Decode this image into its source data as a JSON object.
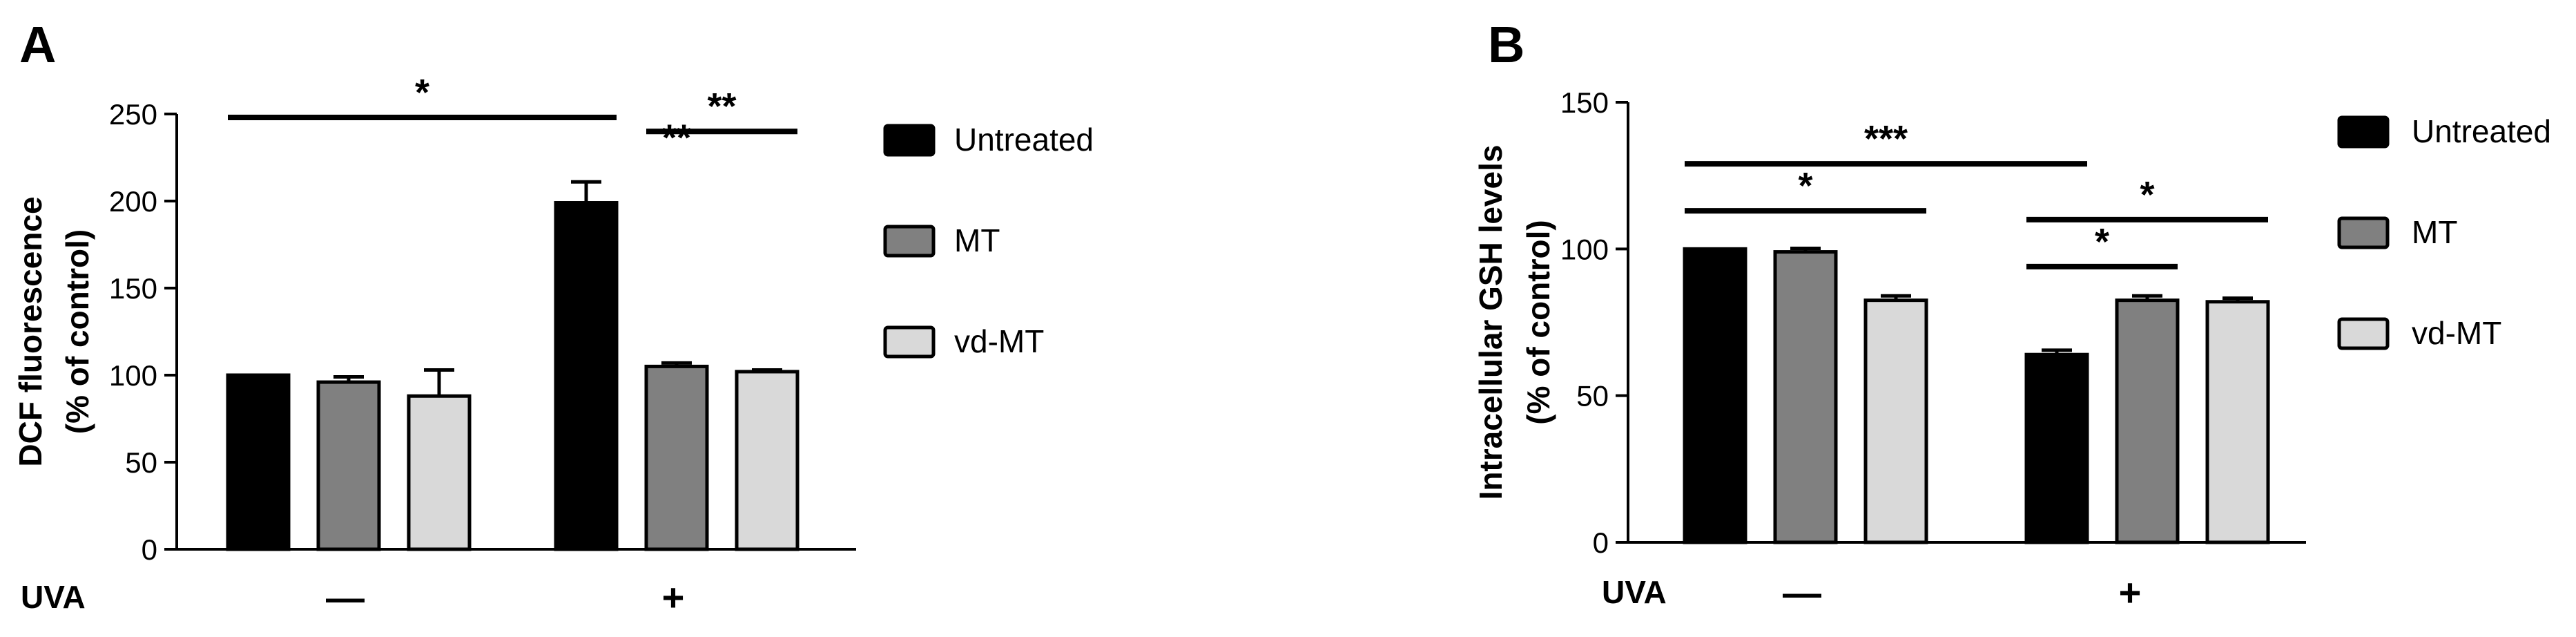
{
  "chart_data": [
    {
      "panel": "A",
      "type": "bar",
      "ylabel": "DCF fluorescence",
      "ylabel2": "(% of control)",
      "ylim": [
        0,
        250
      ],
      "yticks": [
        "0",
        "50",
        "100",
        "150",
        "200",
        "250"
      ],
      "xlabel": "UVA",
      "x_groups": [
        "—",
        "+"
      ],
      "series": [
        {
          "name": "Untreated",
          "values": [
            100,
            199
          ],
          "errors": [
            0,
            12
          ]
        },
        {
          "name": "MT",
          "values": [
            96,
            105
          ],
          "errors": [
            3,
            2
          ]
        },
        {
          "name": "vd-MT",
          "values": [
            88,
            102
          ],
          "errors": [
            15,
            1
          ]
        }
      ],
      "significance": [
        {
          "label": "*",
          "from": [
            0,
            0
          ],
          "to": [
            1,
            0
          ],
          "y": 248
        },
        {
          "label": "**",
          "from": [
            1,
            1
          ],
          "to": [
            1,
            2
          ],
          "y": 240
        },
        {
          "label": "**",
          "from": [
            1,
            1
          ],
          "to": [
            1,
            1
          ],
          "y": 222
        }
      ],
      "grid": false,
      "legend_position": "right"
    },
    {
      "panel": "B",
      "type": "bar",
      "ylabel": "Intracellular GSH levels",
      "ylabel2": "(% of control)",
      "ylim": [
        0,
        150
      ],
      "yticks": [
        "0",
        "50",
        "100",
        "150"
      ],
      "xlabel": "UVA",
      "x_groups": [
        "—",
        "+"
      ],
      "series": [
        {
          "name": "Untreated",
          "values": [
            100,
            64
          ],
          "errors": [
            0,
            1.5
          ]
        },
        {
          "name": "MT",
          "values": [
            99,
            82.5
          ],
          "errors": [
            1.2,
            1.5
          ]
        },
        {
          "name": "vd-MT",
          "values": [
            82.5,
            82
          ],
          "errors": [
            1.5,
            1.2
          ]
        }
      ],
      "significance": [
        {
          "label": "***",
          "from": [
            0,
            0
          ],
          "to": [
            1,
            0
          ],
          "y": 129
        },
        {
          "label": "*",
          "from": [
            0,
            0
          ],
          "to": [
            0,
            2
          ],
          "y": 113
        },
        {
          "label": "*",
          "from": [
            1,
            0
          ],
          "to": [
            1,
            2
          ],
          "y": 110
        },
        {
          "label": "*",
          "from": [
            1,
            0
          ],
          "to": [
            1,
            1
          ],
          "y": 94
        }
      ],
      "grid": false,
      "legend_position": "right"
    }
  ],
  "colors": {
    "Untreated": "#000000",
    "MT": "#808080",
    "vd-MT": "#d9d9d9"
  }
}
